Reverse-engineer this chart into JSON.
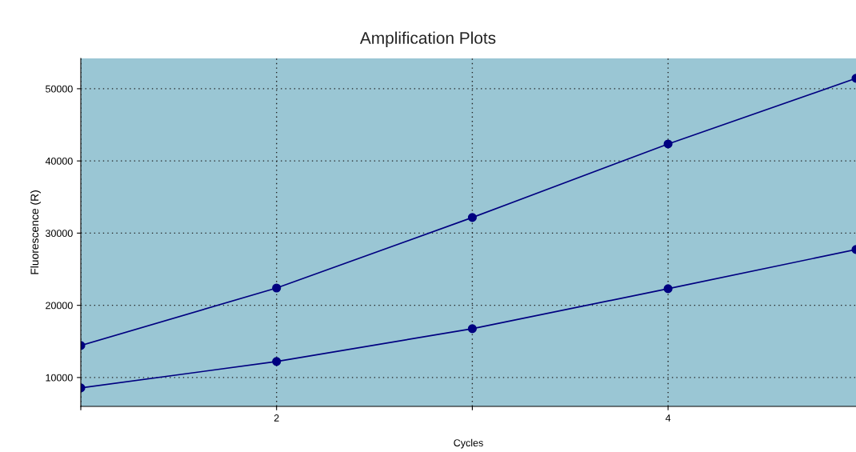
{
  "chart_data": {
    "type": "line",
    "title": "Amplification Plots",
    "xlabel": "Cycles",
    "ylabel": "Fluorescence (R)",
    "series": [
      {
        "color": "#000080",
        "x": [
          1,
          2,
          3,
          4,
          4.96
        ],
        "values": [
          14430,
          22400,
          32160,
          42350,
          51440
        ]
      },
      {
        "color": "#000080",
        "x": [
          1,
          2,
          3,
          4,
          4.96
        ],
        "values": [
          8560,
          12220,
          16760,
          22300,
          27730
        ]
      }
    ],
    "xlim": [
      1,
      4.96
    ],
    "xticks": [
      {
        "value": 1,
        "label": null
      },
      2,
      {
        "value": 3,
        "label": null
      },
      4
    ],
    "ylim": [
      6000,
      54200
    ],
    "yticks": [
      10000,
      20000,
      30000,
      40000,
      50000
    ],
    "grid": true,
    "marker": "circle",
    "line_style": "solid",
    "legend": false
  }
}
